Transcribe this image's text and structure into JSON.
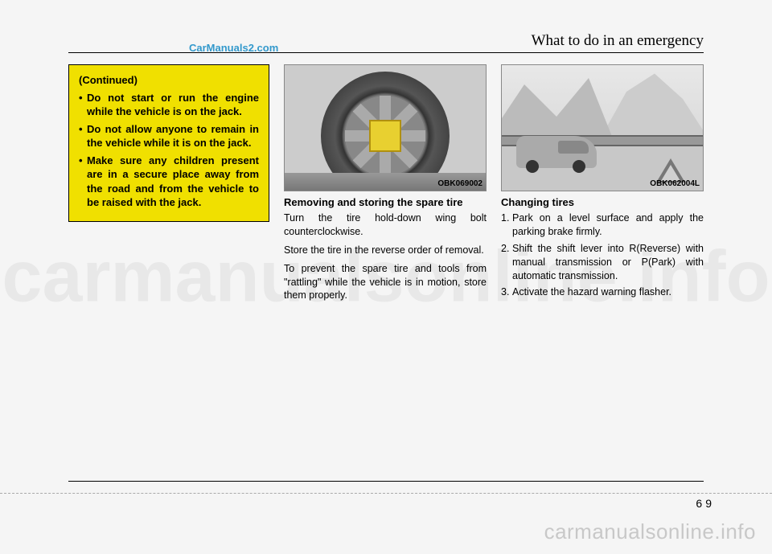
{
  "chapter_title": "What to do in an emergency",
  "site_link": "CarManuals2.com",
  "background_watermark": "carmanualsonline.info",
  "footer_watermark": "carmanualsonline.info",
  "page_section": "6",
  "page_number": "9",
  "warning": {
    "heading": "(Continued)",
    "items": [
      "Do not start or run the engine while the vehicle is on the jack.",
      "Do not allow anyone to remain in the vehicle while it is on the jack.",
      "Make sure any children present are in a secure place away from the road and from the vehicle to be raised with the jack."
    ]
  },
  "col2": {
    "figure_code": "OBK069002",
    "subhead": "Removing and storing the spare tire",
    "paras": [
      "Turn the tire hold-down wing bolt counterclockwise.",
      "Store the tire in the reverse order of removal.",
      "To prevent the spare tire and tools from \"rattling\" while the vehicle is in motion, store them properly."
    ]
  },
  "col3": {
    "figure_code": "OBK062004L",
    "subhead": "Changing tires",
    "steps": [
      {
        "n": "1.",
        "t": "Park on a level surface and apply the parking brake firmly."
      },
      {
        "n": "2.",
        "t": "Shift the shift lever into R(Reverse) with manual transmission or P(Park) with automatic transmission."
      },
      {
        "n": "3.",
        "t": "Activate the hazard warning flasher."
      }
    ]
  }
}
